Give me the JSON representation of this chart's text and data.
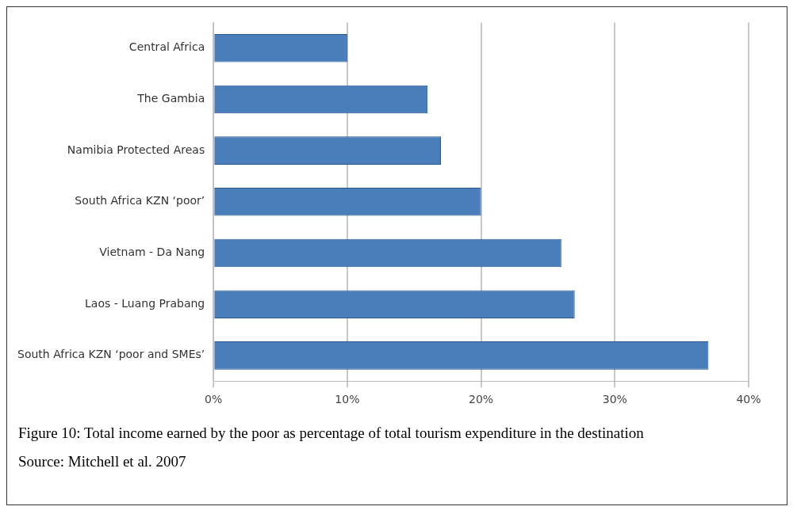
{
  "chart_data": {
    "type": "bar",
    "orientation": "horizontal",
    "title": "Figure 10: Total income earned by the poor as percentage of total tourism expenditure in the destination",
    "annotations": [
      "Source: Mitchell et al. 2007"
    ],
    "categories": [
      "Central Africa",
      "The Gambia",
      "Namibia Protected Areas",
      "South Africa KZN ‘poor’",
      "Vietnam - Da Nang",
      "Laos - Luang Prabang",
      "South Africa KZN ‘poor and SMEs’"
    ],
    "values": [
      10,
      16,
      17,
      20,
      26,
      27,
      37
    ],
    "color": "#4a7ebb",
    "xlim": [
      0,
      40
    ],
    "xticks": [
      {
        "value": 0,
        "label": "0%"
      },
      {
        "value": 10,
        "label": "10%"
      },
      {
        "value": 20,
        "label": "20%"
      },
      {
        "value": 30,
        "label": "30%"
      },
      {
        "value": 40,
        "label": "40%"
      }
    ],
    "grid": "x"
  }
}
